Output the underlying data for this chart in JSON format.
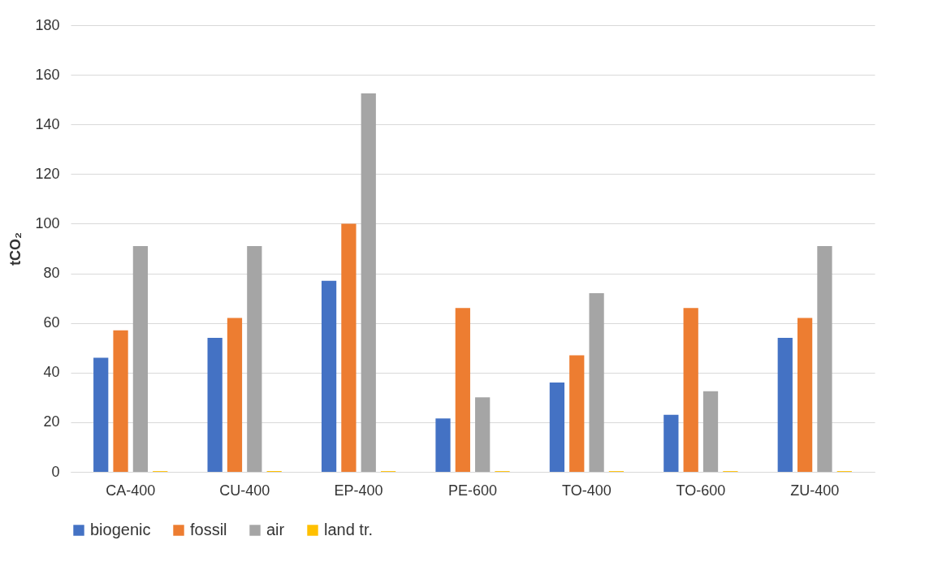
{
  "chart_data": {
    "type": "bar",
    "ylabel": "tCO₂",
    "categories": [
      "CA-400",
      "CU-400",
      "EP-400",
      "PE-600",
      "TO-400",
      "TO-600",
      "ZU-400"
    ],
    "series": [
      {
        "name": "biogenic",
        "color": "#4472c4",
        "values": [
          46,
          54,
          77,
          21.5,
          36,
          23,
          54
        ]
      },
      {
        "name": "fossil",
        "color": "#ed7d31",
        "values": [
          57,
          62,
          100,
          66,
          47,
          66,
          62
        ]
      },
      {
        "name": "air",
        "color": "#a5a5a5",
        "values": [
          91,
          91,
          152.5,
          30,
          72,
          32.5,
          91
        ]
      },
      {
        "name": "land tr.",
        "color": "#ffc000",
        "values": [
          0.3,
          0.3,
          0.3,
          0.3,
          0.3,
          0.3,
          0.3
        ]
      }
    ],
    "ylim": [
      0,
      180
    ],
    "yticks": [
      0,
      20,
      40,
      60,
      80,
      100,
      120,
      140,
      160,
      180
    ],
    "grid": "y",
    "legend": "bottom"
  }
}
